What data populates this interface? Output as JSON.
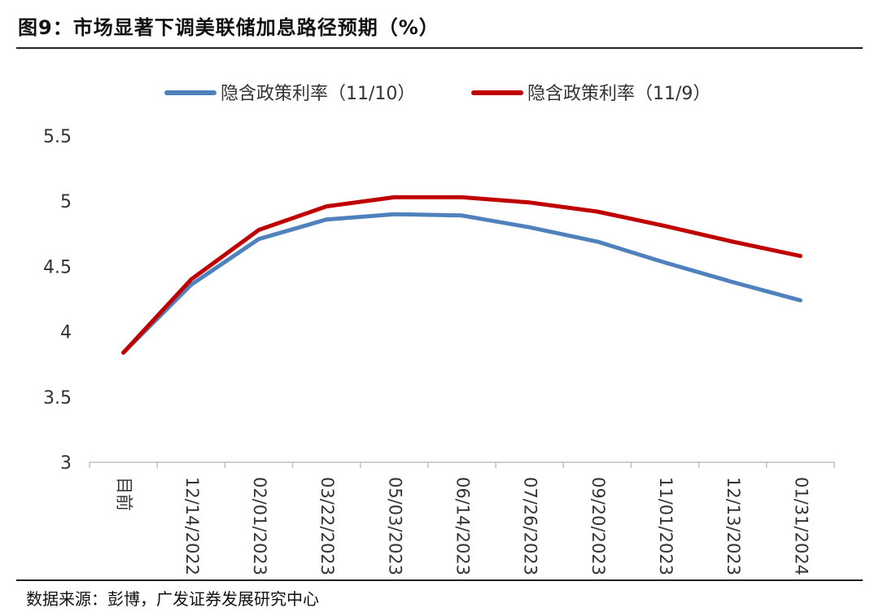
{
  "figure": {
    "title": "图9：市场显著下调美联储加息路径预期（%）",
    "source": "数据来源：彭博，广发证券发展研究中心"
  },
  "chart_data": {
    "type": "line",
    "title": "",
    "xlabel": "",
    "ylabel": "",
    "categories": [
      "目前",
      "12/14/2022",
      "02/01/2023",
      "03/22/2023",
      "05/03/2023",
      "06/14/2023",
      "07/26/2023",
      "09/20/2023",
      "11/01/2023",
      "12/13/2023",
      "01/31/2024"
    ],
    "ylim": [
      3,
      5.5
    ],
    "yticks": [
      3,
      3.5,
      4,
      4.5,
      5,
      5.5
    ],
    "ytick_labels": [
      "3",
      "3.5",
      "4",
      "4.5",
      "5",
      "5.5"
    ],
    "grid": false,
    "legend_position": "top",
    "series": [
      {
        "name": "隐含政策利率（11/10）",
        "color": "#4F81BD",
        "values": [
          3.84,
          4.36,
          4.71,
          4.86,
          4.9,
          4.89,
          4.8,
          4.69,
          4.53,
          4.38,
          4.24
        ]
      },
      {
        "name": "隐含政策利率（11/9）",
        "color": "#C00000",
        "values": [
          3.84,
          4.4,
          4.78,
          4.96,
          5.03,
          5.03,
          4.99,
          4.92,
          4.81,
          4.69,
          4.58
        ]
      }
    ]
  }
}
